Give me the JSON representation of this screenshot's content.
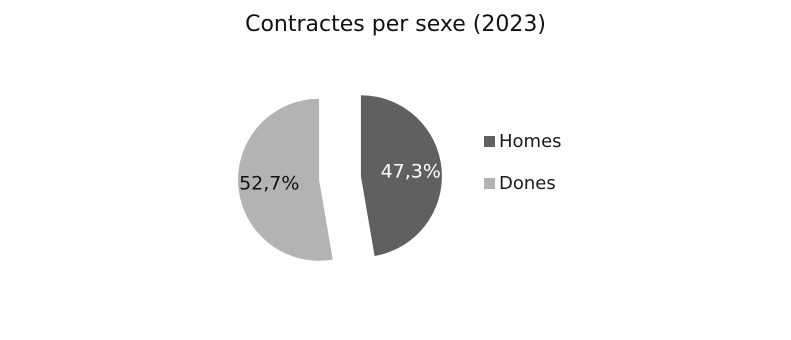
{
  "chart_data": {
    "type": "pie",
    "title": "Contractes per sexe (2023)",
    "slices": [
      {
        "name": "Homes",
        "value": 47.3,
        "label": "47,3%",
        "color": "#606060",
        "label_color": "#ffffff"
      },
      {
        "name": "Dones",
        "value": 52.7,
        "label": "52,7%",
        "color": "#b3b3b3",
        "label_color": "#111111"
      }
    ],
    "legend_position": "right",
    "exploded": true
  }
}
